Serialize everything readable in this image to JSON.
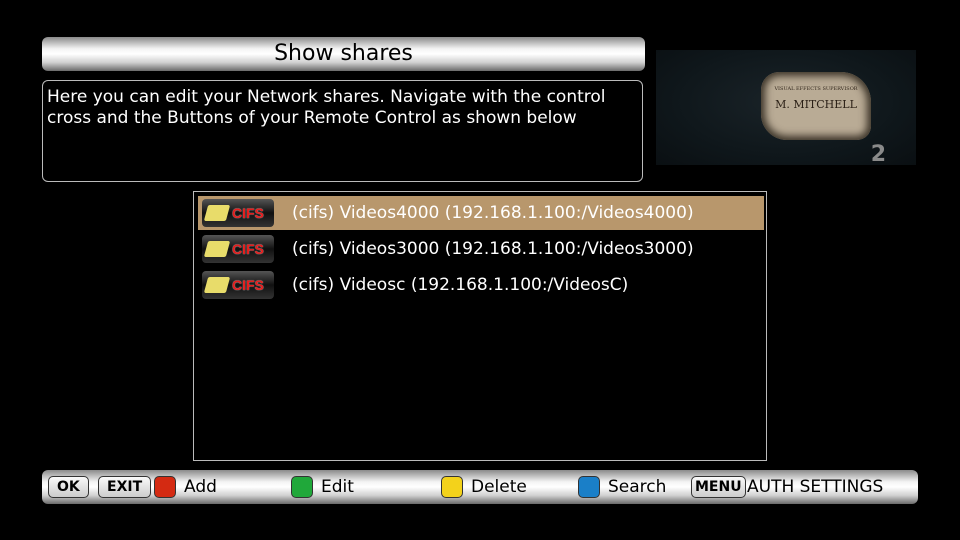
{
  "header": {
    "title": "Show shares"
  },
  "description": "Here you can edit your Network shares. Navigate with the control cross and the Buttons of your Remote Control as shown below",
  "preview": {
    "parchment_small": "VISUAL EFFECTS SUPERVISOR",
    "parchment_name": "M. MITCHELL",
    "channel_number": "2"
  },
  "shares": [
    {
      "type": "CIFS",
      "label": "(cifs) Videos4000 (192.168.1.100:/Videos4000)",
      "selected": true
    },
    {
      "type": "CIFS",
      "label": "(cifs) Videos3000 (192.168.1.100:/Videos3000)",
      "selected": false
    },
    {
      "type": "CIFS",
      "label": "(cifs) Videosc (192.168.1.100:/VideosC)",
      "selected": false
    }
  ],
  "footer": {
    "ok": "OK",
    "exit": "EXIT",
    "red": {
      "label": "Add",
      "color": "#d42a12"
    },
    "green": {
      "label": "Edit",
      "color": "#20a83a"
    },
    "yellow": {
      "label": "Delete",
      "color": "#f3d21b"
    },
    "blue": {
      "label": "Search",
      "color": "#1a7fc8"
    },
    "menu": "MENU",
    "menu_label": "AUTH SETTINGS"
  },
  "colors": {
    "selection": "#b8976c"
  }
}
